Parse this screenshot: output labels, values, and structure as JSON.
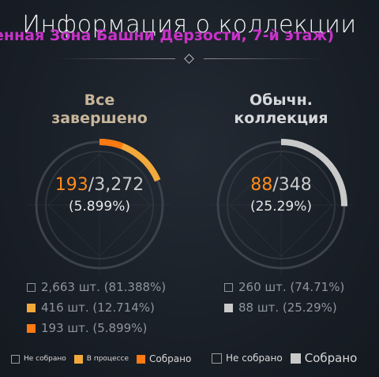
{
  "header": {
    "title": "Информация о коллекции",
    "subtitle": "енная Зона Башни Дерзости, 7-й этаж)"
  },
  "left": {
    "heading_line1": "Все",
    "heading_line2": "завершено",
    "collected": "193",
    "total": "/3,272",
    "percent": "(5.899%)",
    "progress": 0.05899,
    "in_progress": 0.12714,
    "stats": [
      {
        "text": "2,663 шт. (81.388%)",
        "type": "not"
      },
      {
        "text": "416 шт. (12.714%)",
        "type": "inprogress"
      },
      {
        "text": "193 шт. (5.899%)",
        "type": "collected"
      }
    ],
    "legend": [
      {
        "label": "Не собрано"
      },
      {
        "label": "В процессе"
      },
      {
        "label": "Собрано"
      }
    ]
  },
  "right": {
    "heading_line1": "Обычн.",
    "heading_line2": "коллекция",
    "collected": "88",
    "total": "/348",
    "percent": "(25.29%)",
    "progress": 0.2529,
    "stats": [
      {
        "text": "260 шт. (74.71%)",
        "type": "not"
      },
      {
        "text": "88 шт. (25.29%)",
        "type": "collected"
      }
    ],
    "legend": [
      {
        "label": "Не собрано"
      },
      {
        "label": "Собрано"
      }
    ]
  },
  "colors": {
    "accent_orange": "#ff7a12",
    "in_progress_yellow": "#f2a93b",
    "collected_gray": "#c9c9c9",
    "title_gold": "#c7b59b",
    "subtitle_magenta": "#c832c8"
  }
}
